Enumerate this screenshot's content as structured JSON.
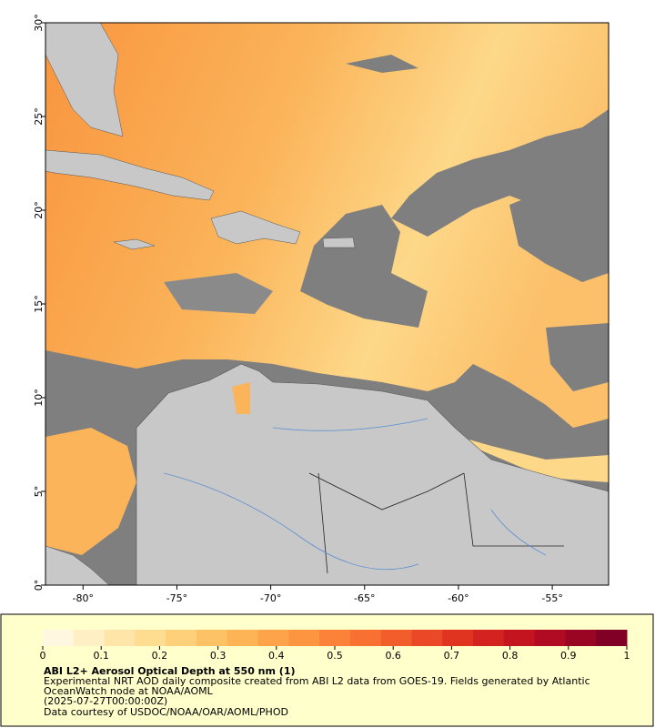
{
  "map": {
    "xlim": [
      -82,
      -52
    ],
    "ylim": [
      0,
      30
    ],
    "xticks": [
      {
        "value": -80,
        "label": "-80°"
      },
      {
        "value": -75,
        "label": "-75°"
      },
      {
        "value": -70,
        "label": "-70°"
      },
      {
        "value": -65,
        "label": "-65°"
      },
      {
        "value": -60,
        "label": "-60°"
      },
      {
        "value": -55,
        "label": "-55°"
      }
    ],
    "yticks": [
      {
        "value": 0,
        "label": "0°"
      },
      {
        "value": 5,
        "label": "5°"
      },
      {
        "value": 10,
        "label": "10°"
      },
      {
        "value": 15,
        "label": "15°"
      },
      {
        "value": 20,
        "label": "20°"
      },
      {
        "value": 25,
        "label": "25°"
      },
      {
        "value": 30,
        "label": "30°"
      }
    ]
  },
  "colorbar": {
    "range": [
      0,
      1
    ],
    "ticks": [
      0,
      0.1,
      0.2,
      0.3,
      0.4,
      0.5,
      0.6,
      0.7,
      0.8,
      0.9,
      1
    ],
    "colors": [
      "#fff7e0",
      "#ffefc4",
      "#ffe6a8",
      "#fedc90",
      "#fed07a",
      "#fec266",
      "#fdb456",
      "#fda44a",
      "#fc9440",
      "#fb8238",
      "#f87032",
      "#f25d2c",
      "#ea4826",
      "#e03320",
      "#d4221e",
      "#c4141f",
      "#b00b22",
      "#9a0526",
      "#800026"
    ]
  },
  "footer": {
    "title": "ABI L2+ Aerosol Optical Depth at 550 nm (1)",
    "line1": "Experimental NRT AOD daily composite created from ABI L2 data from GOES-19. Fields generated by Atlantic",
    "line2": "OceanWatch node at NOAA/AOML",
    "line3": "(2025-07-27T00:00:00Z)",
    "line4": "Data courtesy of USDOC/NOAA/OAR/AOML/PHOD"
  }
}
